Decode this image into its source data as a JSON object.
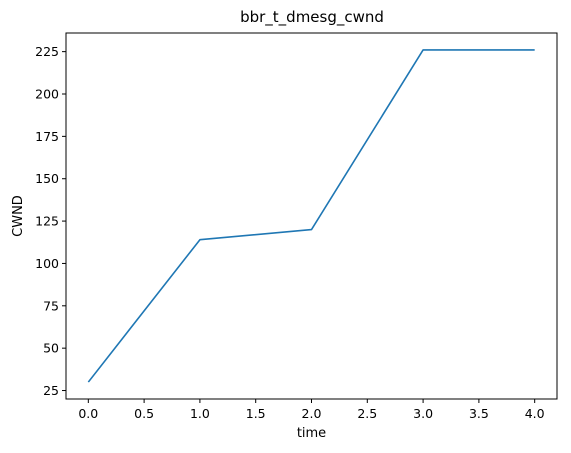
{
  "chart_data": {
    "type": "line",
    "title": "bbr_t_dmesg_cwnd",
    "xlabel": "time",
    "ylabel": "CWND",
    "xlim": [
      -0.2,
      4.2
    ],
    "ylim": [
      20,
      236
    ],
    "xticks": [
      0.0,
      0.5,
      1.0,
      1.5,
      2.0,
      2.5,
      3.0,
      3.5,
      4.0
    ],
    "xtick_labels": [
      "0.0",
      "0.5",
      "1.0",
      "1.5",
      "2.0",
      "2.5",
      "3.0",
      "3.5",
      "4.0"
    ],
    "yticks": [
      25,
      50,
      75,
      100,
      125,
      150,
      175,
      200,
      225
    ],
    "ytick_labels": [
      "25",
      "50",
      "75",
      "100",
      "125",
      "150",
      "175",
      "200",
      "225"
    ],
    "grid": false,
    "series": [
      {
        "color": "#1f77b4",
        "x": [
          0,
          1,
          2,
          3,
          4
        ],
        "y": [
          30,
          114,
          120,
          226,
          226
        ]
      }
    ]
  }
}
